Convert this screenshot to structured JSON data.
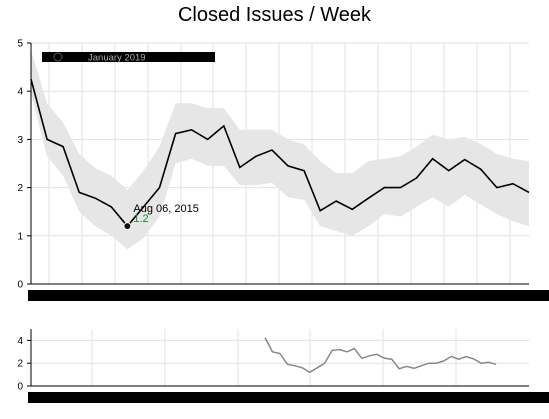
{
  "chart_data": {
    "type": "line",
    "title": "Closed Issues / Week",
    "xlabel": "",
    "ylabel": "",
    "ylim": [
      0,
      5
    ],
    "y_ticks": [
      0,
      1,
      2,
      3,
      4,
      5
    ],
    "context_ylim": [
      0,
      5
    ],
    "context_y_ticks": [
      0,
      2,
      4
    ],
    "grid": true,
    "legend_label": "January 2019",
    "marker": {
      "date": "Aug 06, 2015",
      "value": "1.2"
    },
    "series": [
      {
        "values": [
          4.25,
          3.0,
          2.85,
          1.9,
          1.78,
          1.6,
          1.2,
          1.6,
          2.0,
          3.12,
          3.2,
          3.0,
          3.28,
          2.42,
          2.65,
          2.78,
          2.45,
          2.35,
          1.52,
          1.72,
          1.55,
          1.78,
          2.0,
          2.0,
          2.2,
          2.6,
          2.35,
          2.58,
          2.38,
          2.0,
          2.08,
          1.9
        ]
      }
    ],
    "band_upper": [
      4.85,
      3.75,
      3.35,
      2.7,
      2.4,
      2.25,
      1.95,
      2.35,
      2.85,
      3.75,
      3.75,
      3.65,
      3.65,
      3.2,
      3.2,
      3.2,
      3.0,
      2.9,
      2.55,
      2.3,
      2.3,
      2.55,
      2.6,
      2.65,
      2.85,
      3.1,
      3.0,
      3.05,
      2.9,
      2.7,
      2.6,
      2.55
    ],
    "band_lower": [
      3.95,
      2.65,
      2.25,
      1.5,
      1.2,
      1.0,
      0.72,
      0.95,
      1.4,
      2.5,
      2.6,
      2.45,
      2.45,
      2.05,
      2.05,
      2.1,
      1.8,
      1.75,
      1.2,
      1.1,
      1.0,
      1.2,
      1.45,
      1.4,
      1.6,
      1.8,
      1.6,
      1.85,
      1.65,
      1.45,
      1.3,
      1.2
    ],
    "context_series": [
      4.25,
      3.0,
      2.85,
      1.9,
      1.78,
      1.6,
      1.2,
      1.6,
      2.0,
      3.12,
      3.2,
      3.0,
      3.28,
      2.42,
      2.65,
      2.78,
      2.45,
      2.35,
      1.52,
      1.72,
      1.55,
      1.78,
      2.0,
      2.0,
      2.2,
      2.6,
      2.35,
      2.58,
      2.38,
      2.0,
      2.08,
      1.9
    ]
  }
}
